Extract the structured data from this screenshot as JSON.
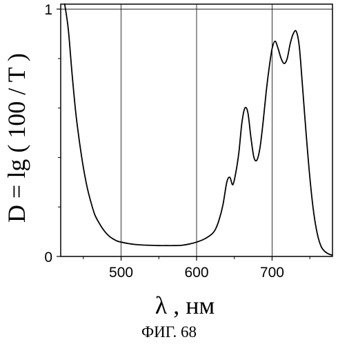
{
  "chart_data": {
    "type": "line",
    "xlabel": "λ , нм",
    "ylabel": "D = lg ( 100 / T )",
    "caption": "ФИГ. 68",
    "xlim": [
      420,
      780
    ],
    "ylim": [
      0,
      1.02
    ],
    "x_ticks": [
      500,
      600,
      700
    ],
    "x_tick_labels": [
      "500",
      "600",
      "700"
    ],
    "y_ticks": [
      0,
      1
    ],
    "y_tick_labels": [
      "0",
      "1"
    ],
    "grid": true,
    "series": [
      {
        "x": [
          425,
          430,
          435,
          440,
          445,
          450,
          455,
          460,
          465,
          470,
          475,
          480,
          485,
          490,
          495,
          500,
          510,
          520,
          530,
          540,
          550,
          560,
          570,
          580,
          590,
          600,
          610,
          620,
          625,
          630,
          635,
          640,
          644,
          648,
          652,
          656,
          660,
          664,
          668,
          672,
          676,
          680,
          684,
          688,
          692,
          696,
          700,
          704,
          708,
          712,
          716,
          720,
          724,
          728,
          732,
          736,
          740,
          745,
          750,
          755,
          760,
          765,
          770,
          775,
          780
        ],
        "y": [
          1.03,
          0.92,
          0.74,
          0.58,
          0.46,
          0.36,
          0.28,
          0.22,
          0.17,
          0.14,
          0.115,
          0.095,
          0.08,
          0.07,
          0.062,
          0.058,
          0.052,
          0.048,
          0.046,
          0.045,
          0.044,
          0.044,
          0.044,
          0.045,
          0.05,
          0.058,
          0.07,
          0.09,
          0.11,
          0.15,
          0.21,
          0.3,
          0.32,
          0.29,
          0.34,
          0.42,
          0.54,
          0.6,
          0.58,
          0.48,
          0.4,
          0.39,
          0.44,
          0.54,
          0.66,
          0.76,
          0.84,
          0.87,
          0.84,
          0.8,
          0.78,
          0.8,
          0.86,
          0.9,
          0.91,
          0.85,
          0.7,
          0.5,
          0.32,
          0.18,
          0.09,
          0.04,
          0.02,
          0.01,
          0.005
        ]
      }
    ]
  }
}
